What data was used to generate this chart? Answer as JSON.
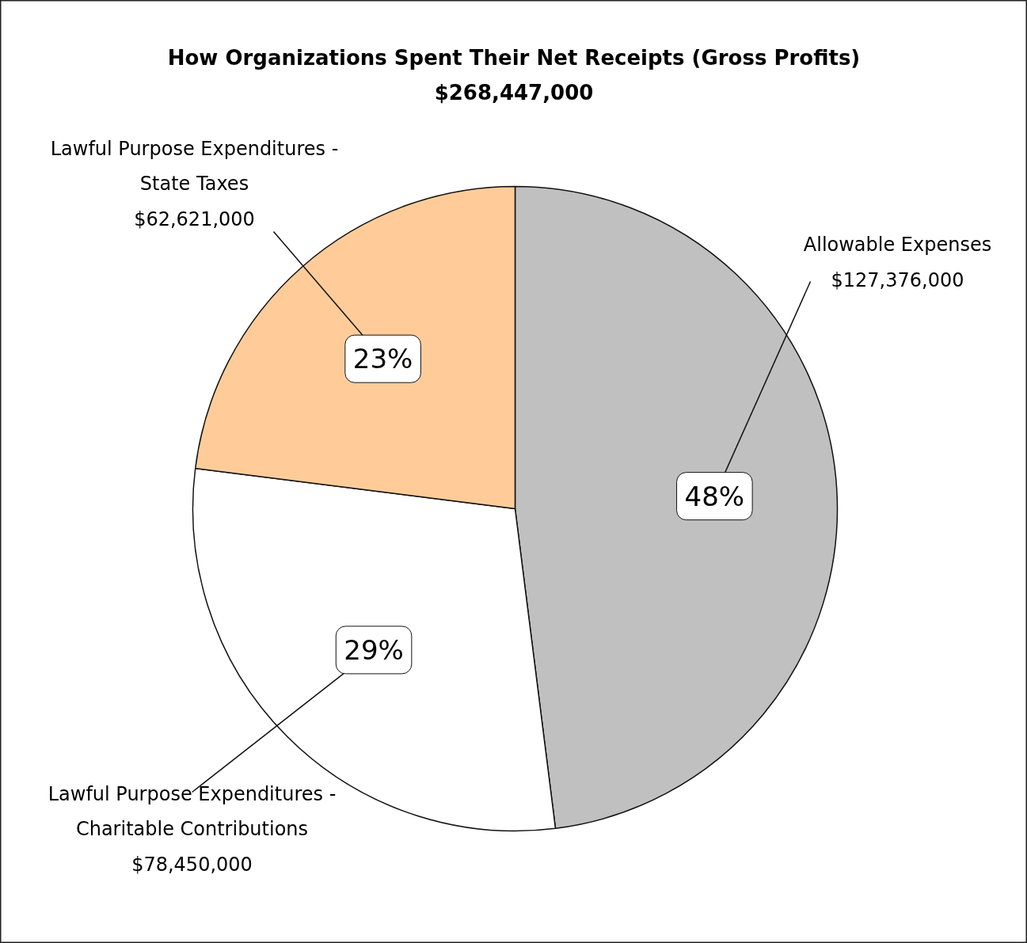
{
  "chart_data": {
    "type": "pie",
    "title": "How Organizations Spent Their Net Receipts (Gross Profits)",
    "subtitle": "$268,447,000",
    "categories": [
      "Allowable Expenses\n$127,376,000",
      "Lawful Purpose Expenditures -\nCharitable Contributions\n$78,450,000",
      "Lawful Purpose Expenditures -\nState Taxes\n$62,621,000"
    ],
    "values": [
      48,
      29,
      23
    ],
    "colors": [
      "#c0c0c0",
      "#ffffff",
      "#ffcc99"
    ],
    "value_labels": [
      "48%",
      "29%",
      "23%"
    ]
  }
}
